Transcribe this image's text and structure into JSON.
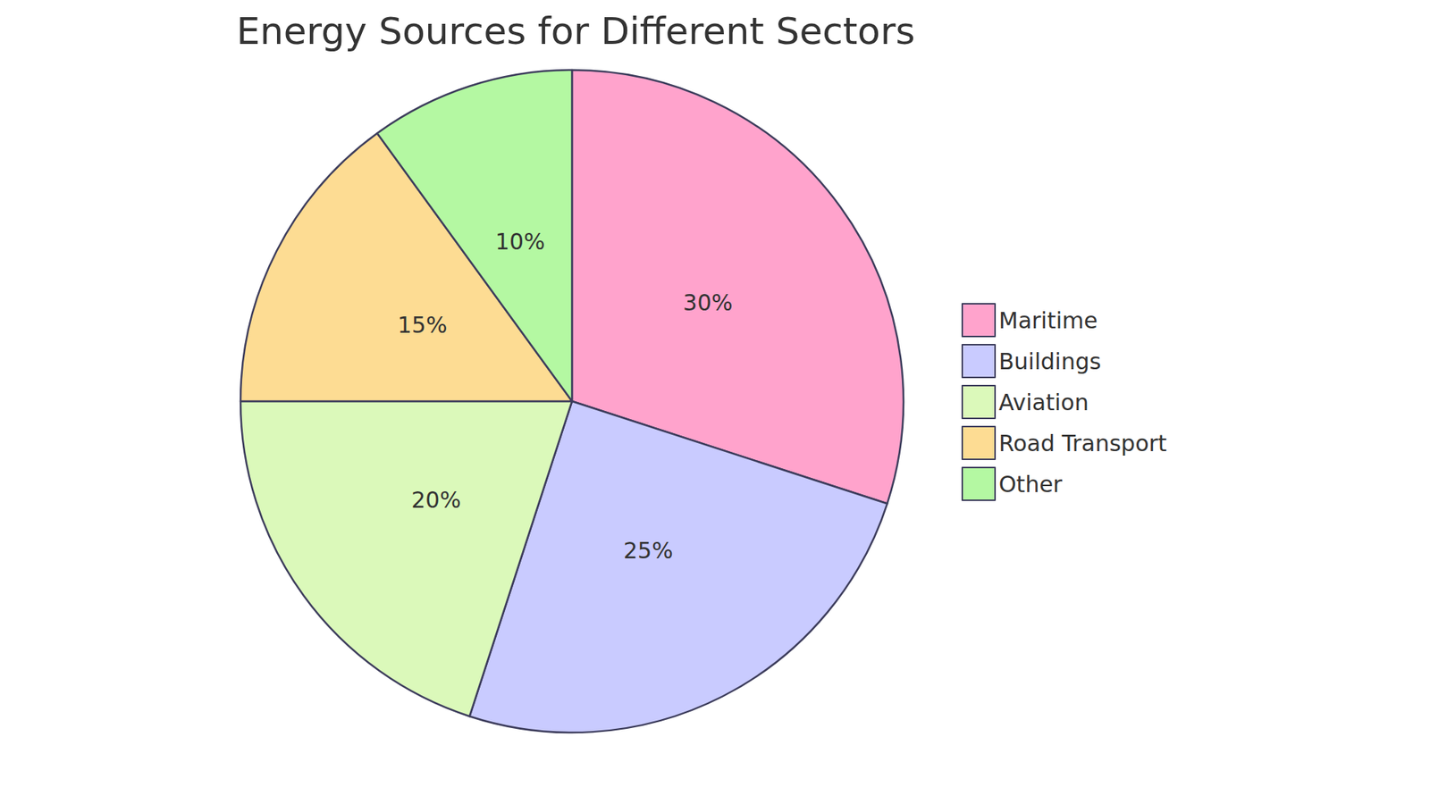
{
  "chart_data": {
    "type": "pie",
    "title": "Energy Sources for Different Sectors",
    "categories": [
      "Maritime",
      "Buildings",
      "Aviation",
      "Road Transport",
      "Other"
    ],
    "values": [
      30,
      25,
      20,
      15,
      10
    ],
    "value_labels": [
      "30%",
      "25%",
      "20%",
      "15%",
      "10%"
    ],
    "colors": [
      "#ffa3cc",
      "#c9cbff",
      "#dbf9ba",
      "#fddc93",
      "#b4f8a2"
    ],
    "data_labels": true,
    "legend": "right"
  }
}
